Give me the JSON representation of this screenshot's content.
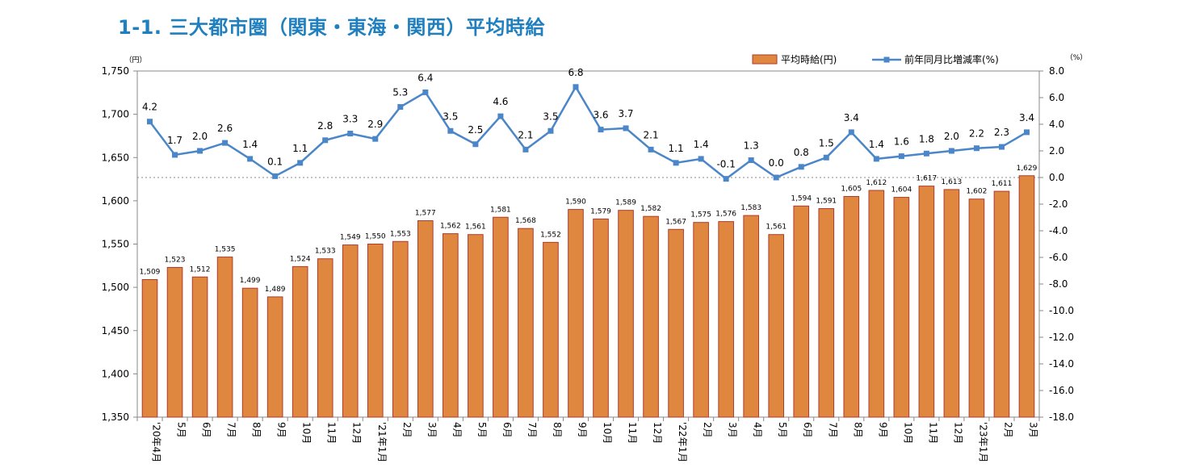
{
  "title": "1-1. 三大都市圏（関東・東海・関西）平均時給",
  "chart_data": {
    "type": "bar",
    "categories": [
      "'20年4月",
      "5月",
      "6月",
      "7月",
      "8月",
      "9月",
      "10月",
      "11月",
      "12月",
      "'21年1月",
      "2月",
      "3月",
      "4月",
      "5月",
      "6月",
      "7月",
      "8月",
      "9月",
      "10月",
      "11月",
      "12月",
      "'22年1月",
      "2月",
      "3月",
      "4月",
      "5月",
      "6月",
      "7月",
      "8月",
      "9月",
      "10月",
      "11月",
      "12月",
      "'23年1月",
      "2月",
      "3月"
    ],
    "series": [
      {
        "name": "平均時給(円)",
        "type": "bar",
        "axis": "left",
        "color": "#e0873f",
        "values": [
          1509,
          1523,
          1512,
          1535,
          1499,
          1489,
          1524,
          1533,
          1549,
          1550,
          1553,
          1577,
          1562,
          1561,
          1581,
          1568,
          1552,
          1590,
          1579,
          1589,
          1582,
          1567,
          1575,
          1576,
          1583,
          1561,
          1594,
          1591,
          1605,
          1612,
          1604,
          1617,
          1613,
          1602,
          1611,
          1629
        ],
        "labels": [
          "1,509",
          "1,523",
          "1,512",
          "1,535",
          "1,499",
          "1,489",
          "1,524",
          "1,533",
          "1,549",
          "1,550",
          "1,553",
          "1,577",
          "1,562",
          "1,561",
          "1,581",
          "1,568",
          "1,552",
          "1,590",
          "1,579",
          "1,589",
          "1,582",
          "1,567",
          "1,575",
          "1,576",
          "1,583",
          "1,561",
          "1,594",
          "1,591",
          "1,605",
          "1,612",
          "1,604",
          "1,617",
          "1,613",
          "1,602",
          "1,611",
          "1,629"
        ]
      },
      {
        "name": "前年同月比増減率(%)",
        "type": "line",
        "axis": "right",
        "color": "#4a86c8",
        "values": [
          4.2,
          1.7,
          2.0,
          2.6,
          1.4,
          0.1,
          1.1,
          2.8,
          3.3,
          2.9,
          5.3,
          6.4,
          3.5,
          2.5,
          4.6,
          2.1,
          3.5,
          6.8,
          3.6,
          3.7,
          2.1,
          1.1,
          1.4,
          -0.1,
          1.3,
          0.0,
          0.8,
          1.5,
          3.4,
          1.4,
          1.6,
          1.8,
          2.0,
          2.2,
          2.3,
          3.4
        ],
        "labels": [
          "4.2",
          "1.7",
          "2.0",
          "2.6",
          "1.4",
          "0.1",
          "1.1",
          "2.8",
          "3.3",
          "2.9",
          "5.3",
          "6.4",
          "3.5",
          "2.5",
          "4.6",
          "2.1",
          "3.5",
          "6.8",
          "3.6",
          "3.7",
          "2.1",
          "1.1",
          "1.4",
          "-0.1",
          "1.3",
          "0.0",
          "0.8",
          "1.5",
          "3.4",
          "1.4",
          "1.6",
          "1.8",
          "2.0",
          "2.2",
          "2.3",
          "3.4"
        ]
      }
    ],
    "y_left": {
      "unit": "（円）",
      "ylim": [
        1350,
        1750
      ],
      "ticks": [
        1350,
        1400,
        1450,
        1500,
        1550,
        1600,
        1650,
        1700,
        1750
      ],
      "tick_labels": [
        "1,350",
        "1,400",
        "1,450",
        "1,500",
        "1,550",
        "1,600",
        "1,650",
        "1,700",
        "1,750"
      ]
    },
    "y_right": {
      "unit": "（%）",
      "ylim": [
        -18,
        8
      ],
      "ticks": [
        8,
        6,
        4,
        2,
        0,
        -2,
        -4,
        -6,
        -8,
        -10,
        -12,
        -14,
        -16,
        -18
      ],
      "tick_labels": [
        "8.0",
        "6.0",
        "4.0",
        "2.0",
        "0.0",
        "-2.0",
        "-4.0",
        "-6.0",
        "-8.0",
        "-10.0",
        "-12.0",
        "-14.0",
        "-16.0",
        "-18.0"
      ]
    },
    "legend": {
      "position": "top-right",
      "items": [
        "平均時給(円)",
        "前年同月比増減率(%)"
      ]
    },
    "grid": false,
    "zero_line_right": true
  }
}
